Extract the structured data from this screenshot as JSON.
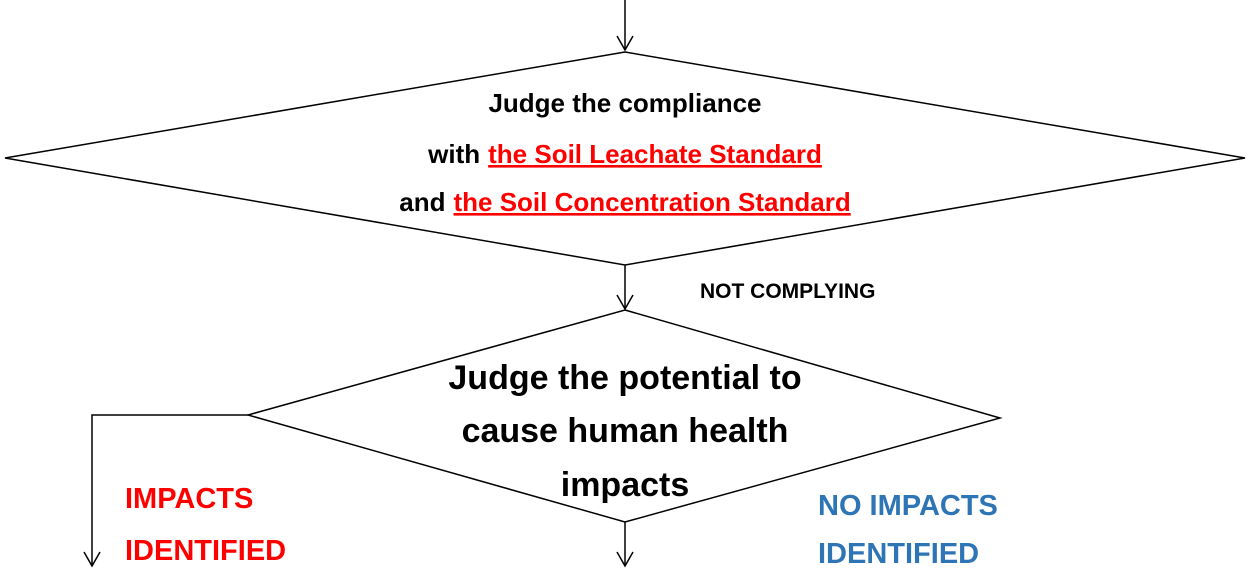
{
  "decision1": {
    "line1": "Judge the compliance",
    "line2": [
      "with",
      "the Soil Leachate Standard"
    ],
    "line3": [
      "and",
      "the Soil Concentration Standard"
    ]
  },
  "branch_not_complying": "NOT COMPLYING",
  "decision2": {
    "lines": [
      "Judge the potential to",
      "cause human health",
      "impacts"
    ]
  },
  "outcome_impacts": [
    "IMPACTS",
    "IDENTIFIED"
  ],
  "outcome_no_impacts": [
    "NO IMPACTS",
    "IDENTIFIED"
  ]
}
